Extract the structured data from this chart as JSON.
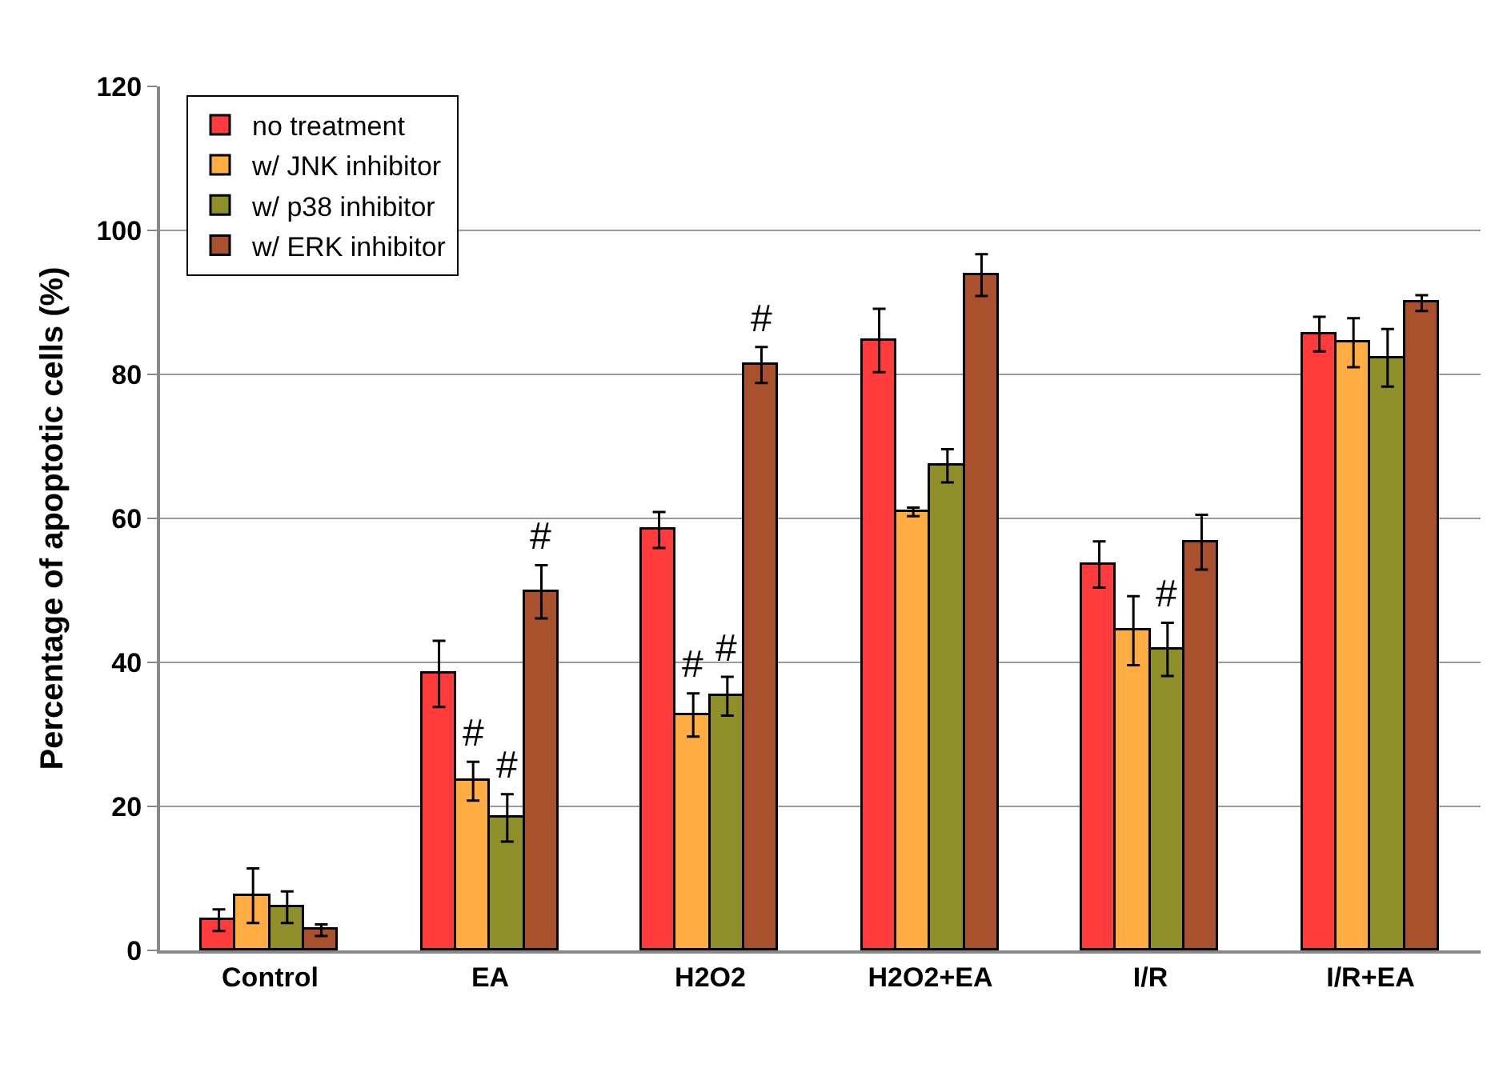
{
  "chart_data": {
    "type": "bar",
    "ylabel": "Percentage of apoptotic cells (%)",
    "categories": [
      "Control",
      "EA",
      "H2O2",
      "H2O2+EA",
      "I/R",
      "I/R+EA"
    ],
    "series": [
      {
        "name": "no treatment",
        "color": "#ff3b3b",
        "values": [
          4.2,
          38.4,
          58.4,
          84.7,
          53.6,
          85.6
        ],
        "errors": [
          1.5,
          4.6,
          2.5,
          4.4,
          3.2,
          2.4
        ]
      },
      {
        "name": "w/ JNK inhibitor",
        "color": "#ffad42",
        "values": [
          7.6,
          23.5,
          32.7,
          60.9,
          44.4,
          84.4
        ],
        "errors": [
          3.8,
          2.7,
          3.0,
          0.6,
          4.8,
          3.4
        ],
        "value_labels": [
          null,
          "#",
          "#",
          null,
          null,
          null
        ]
      },
      {
        "name": "w/ p38 inhibitor",
        "color": "#8f8f2a",
        "values": [
          6.0,
          18.4,
          35.3,
          67.3,
          41.8,
          82.3
        ],
        "errors": [
          2.2,
          3.3,
          2.7,
          2.3,
          3.7,
          4.0
        ],
        "value_labels": [
          null,
          "#",
          "#",
          null,
          "#",
          null
        ]
      },
      {
        "name": "w/ ERK inhibitor",
        "color": "#a9512c",
        "values": [
          2.8,
          49.8,
          81.3,
          93.8,
          56.7,
          89.9
        ],
        "errors": [
          0.8,
          3.7,
          2.5,
          2.9,
          3.8,
          1.1
        ],
        "value_labels": [
          null,
          "#",
          "#",
          null,
          null,
          null
        ]
      }
    ],
    "ylim": [
      0,
      120
    ],
    "yticks": [
      0,
      20,
      40,
      60,
      80,
      100,
      120
    ],
    "grid": "y",
    "legend": "top left"
  }
}
